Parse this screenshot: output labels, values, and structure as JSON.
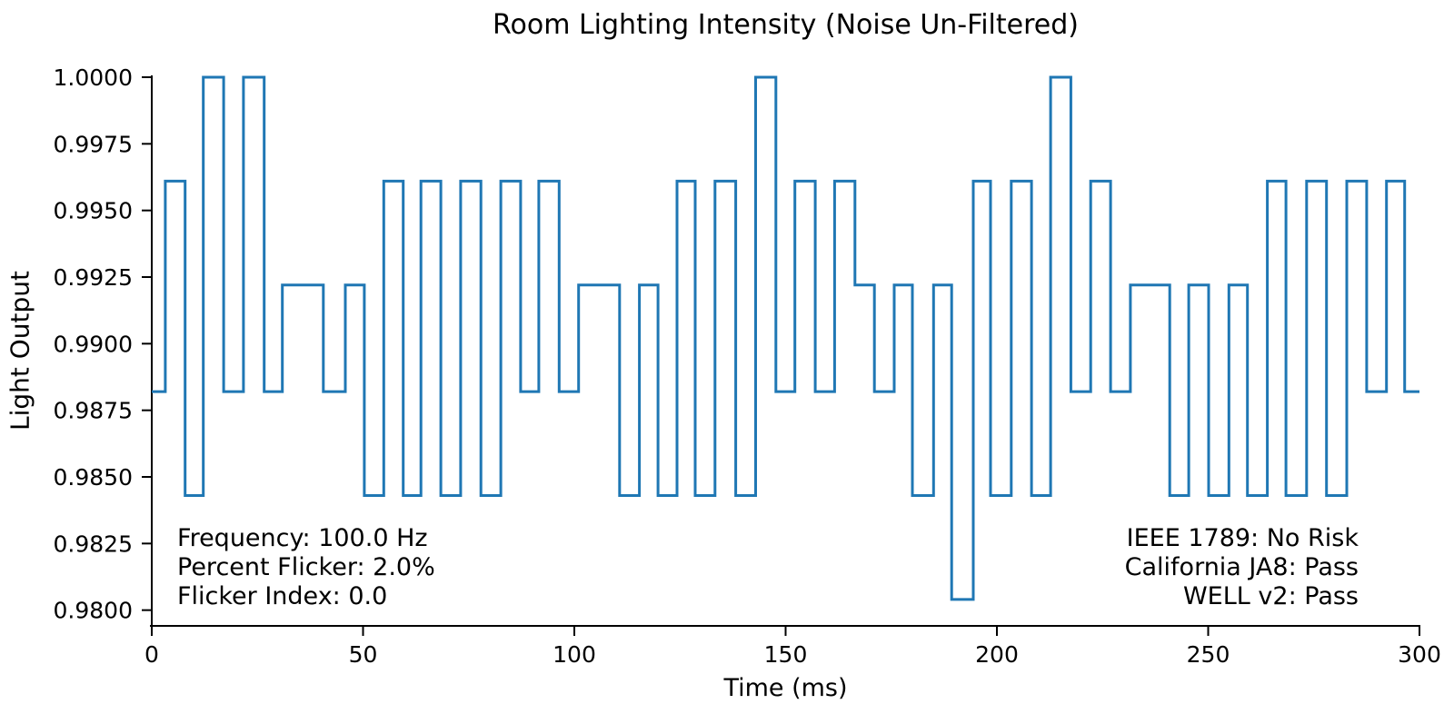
{
  "chart_data": {
    "type": "line",
    "step_mode": "post",
    "title": "Room Lighting Intensity (Noise Un-Filtered)",
    "xlabel": "Time (ms)",
    "ylabel": "Light Output",
    "xlim": [
      0,
      300
    ],
    "ylim": [
      0.9794,
      1.0001
    ],
    "x_ticks": [
      "0",
      "50",
      "100",
      "150",
      "200",
      "250",
      "300"
    ],
    "y_ticks": [
      "1.0000",
      "0.9975",
      "0.9950",
      "0.9925",
      "0.9900",
      "0.9875",
      "0.9850",
      "0.9825",
      "0.9800"
    ],
    "grid": "off",
    "legend": "none",
    "line_color": "#1f77b4",
    "quantization_levels": [
      0.9804,
      0.9843,
      0.9882,
      0.9922,
      0.9961,
      1.0
    ],
    "steps_format": "[time_ms, light_output] step-holds until next breakpoint; series ends at t=300",
    "steps": [
      [
        0.0,
        0.9882
      ],
      [
        3.2,
        0.9961
      ],
      [
        7.9,
        0.9843
      ],
      [
        12.2,
        1.0
      ],
      [
        17.0,
        0.9882
      ],
      [
        21.7,
        1.0
      ],
      [
        26.6,
        0.9882
      ],
      [
        30.9,
        0.9922
      ],
      [
        40.6,
        0.9882
      ],
      [
        45.8,
        0.9922
      ],
      [
        50.3,
        0.9843
      ],
      [
        54.9,
        0.9961
      ],
      [
        59.5,
        0.9843
      ],
      [
        63.7,
        0.9961
      ],
      [
        68.4,
        0.9843
      ],
      [
        73.1,
        0.9961
      ],
      [
        77.9,
        0.9843
      ],
      [
        82.6,
        0.9961
      ],
      [
        87.3,
        0.9882
      ],
      [
        91.6,
        0.9961
      ],
      [
        96.4,
        0.9882
      ],
      [
        101.0,
        0.9922
      ],
      [
        110.7,
        0.9843
      ],
      [
        115.4,
        0.9922
      ],
      [
        119.8,
        0.9843
      ],
      [
        124.3,
        0.9961
      ],
      [
        128.6,
        0.9843
      ],
      [
        133.3,
        0.9961
      ],
      [
        138.2,
        0.9843
      ],
      [
        142.9,
        1.0
      ],
      [
        147.7,
        0.9882
      ],
      [
        152.2,
        0.9961
      ],
      [
        157.0,
        0.9882
      ],
      [
        161.6,
        0.9961
      ],
      [
        166.4,
        0.9922
      ],
      [
        171.0,
        0.9882
      ],
      [
        175.7,
        0.9922
      ],
      [
        180.0,
        0.9843
      ],
      [
        185.0,
        0.9922
      ],
      [
        189.3,
        0.9804
      ],
      [
        194.4,
        0.9961
      ],
      [
        198.5,
        0.9843
      ],
      [
        203.4,
        0.9961
      ],
      [
        208.2,
        0.9843
      ],
      [
        212.7,
        1.0
      ],
      [
        217.5,
        0.9882
      ],
      [
        222.2,
        0.9961
      ],
      [
        226.9,
        0.9882
      ],
      [
        231.6,
        0.9922
      ],
      [
        240.9,
        0.9843
      ],
      [
        245.4,
        0.9922
      ],
      [
        250.1,
        0.9843
      ],
      [
        254.9,
        0.9922
      ],
      [
        259.3,
        0.9843
      ],
      [
        264.0,
        0.9961
      ],
      [
        268.4,
        0.9843
      ],
      [
        273.3,
        0.9961
      ],
      [
        278.0,
        0.9843
      ],
      [
        282.8,
        0.9961
      ],
      [
        287.5,
        0.9882
      ],
      [
        292.2,
        0.9961
      ],
      [
        296.5,
        0.9882
      ]
    ],
    "t_end": 300,
    "annotations": {
      "left_lines": [
        "Frequency: 100.0 Hz",
        "Percent Flicker: 2.0%",
        "Flicker Index: 0.0"
      ],
      "right_lines": [
        "IEEE 1789: No Risk",
        "California JA8: Pass",
        "WELL v2: Pass"
      ]
    },
    "metrics": {
      "frequency_hz": 100.0,
      "percent_flicker_pct": 2.0,
      "flicker_index": 0.0,
      "ieee_1789": "No Risk",
      "california_ja8": "Pass",
      "well_v2": "Pass"
    }
  }
}
